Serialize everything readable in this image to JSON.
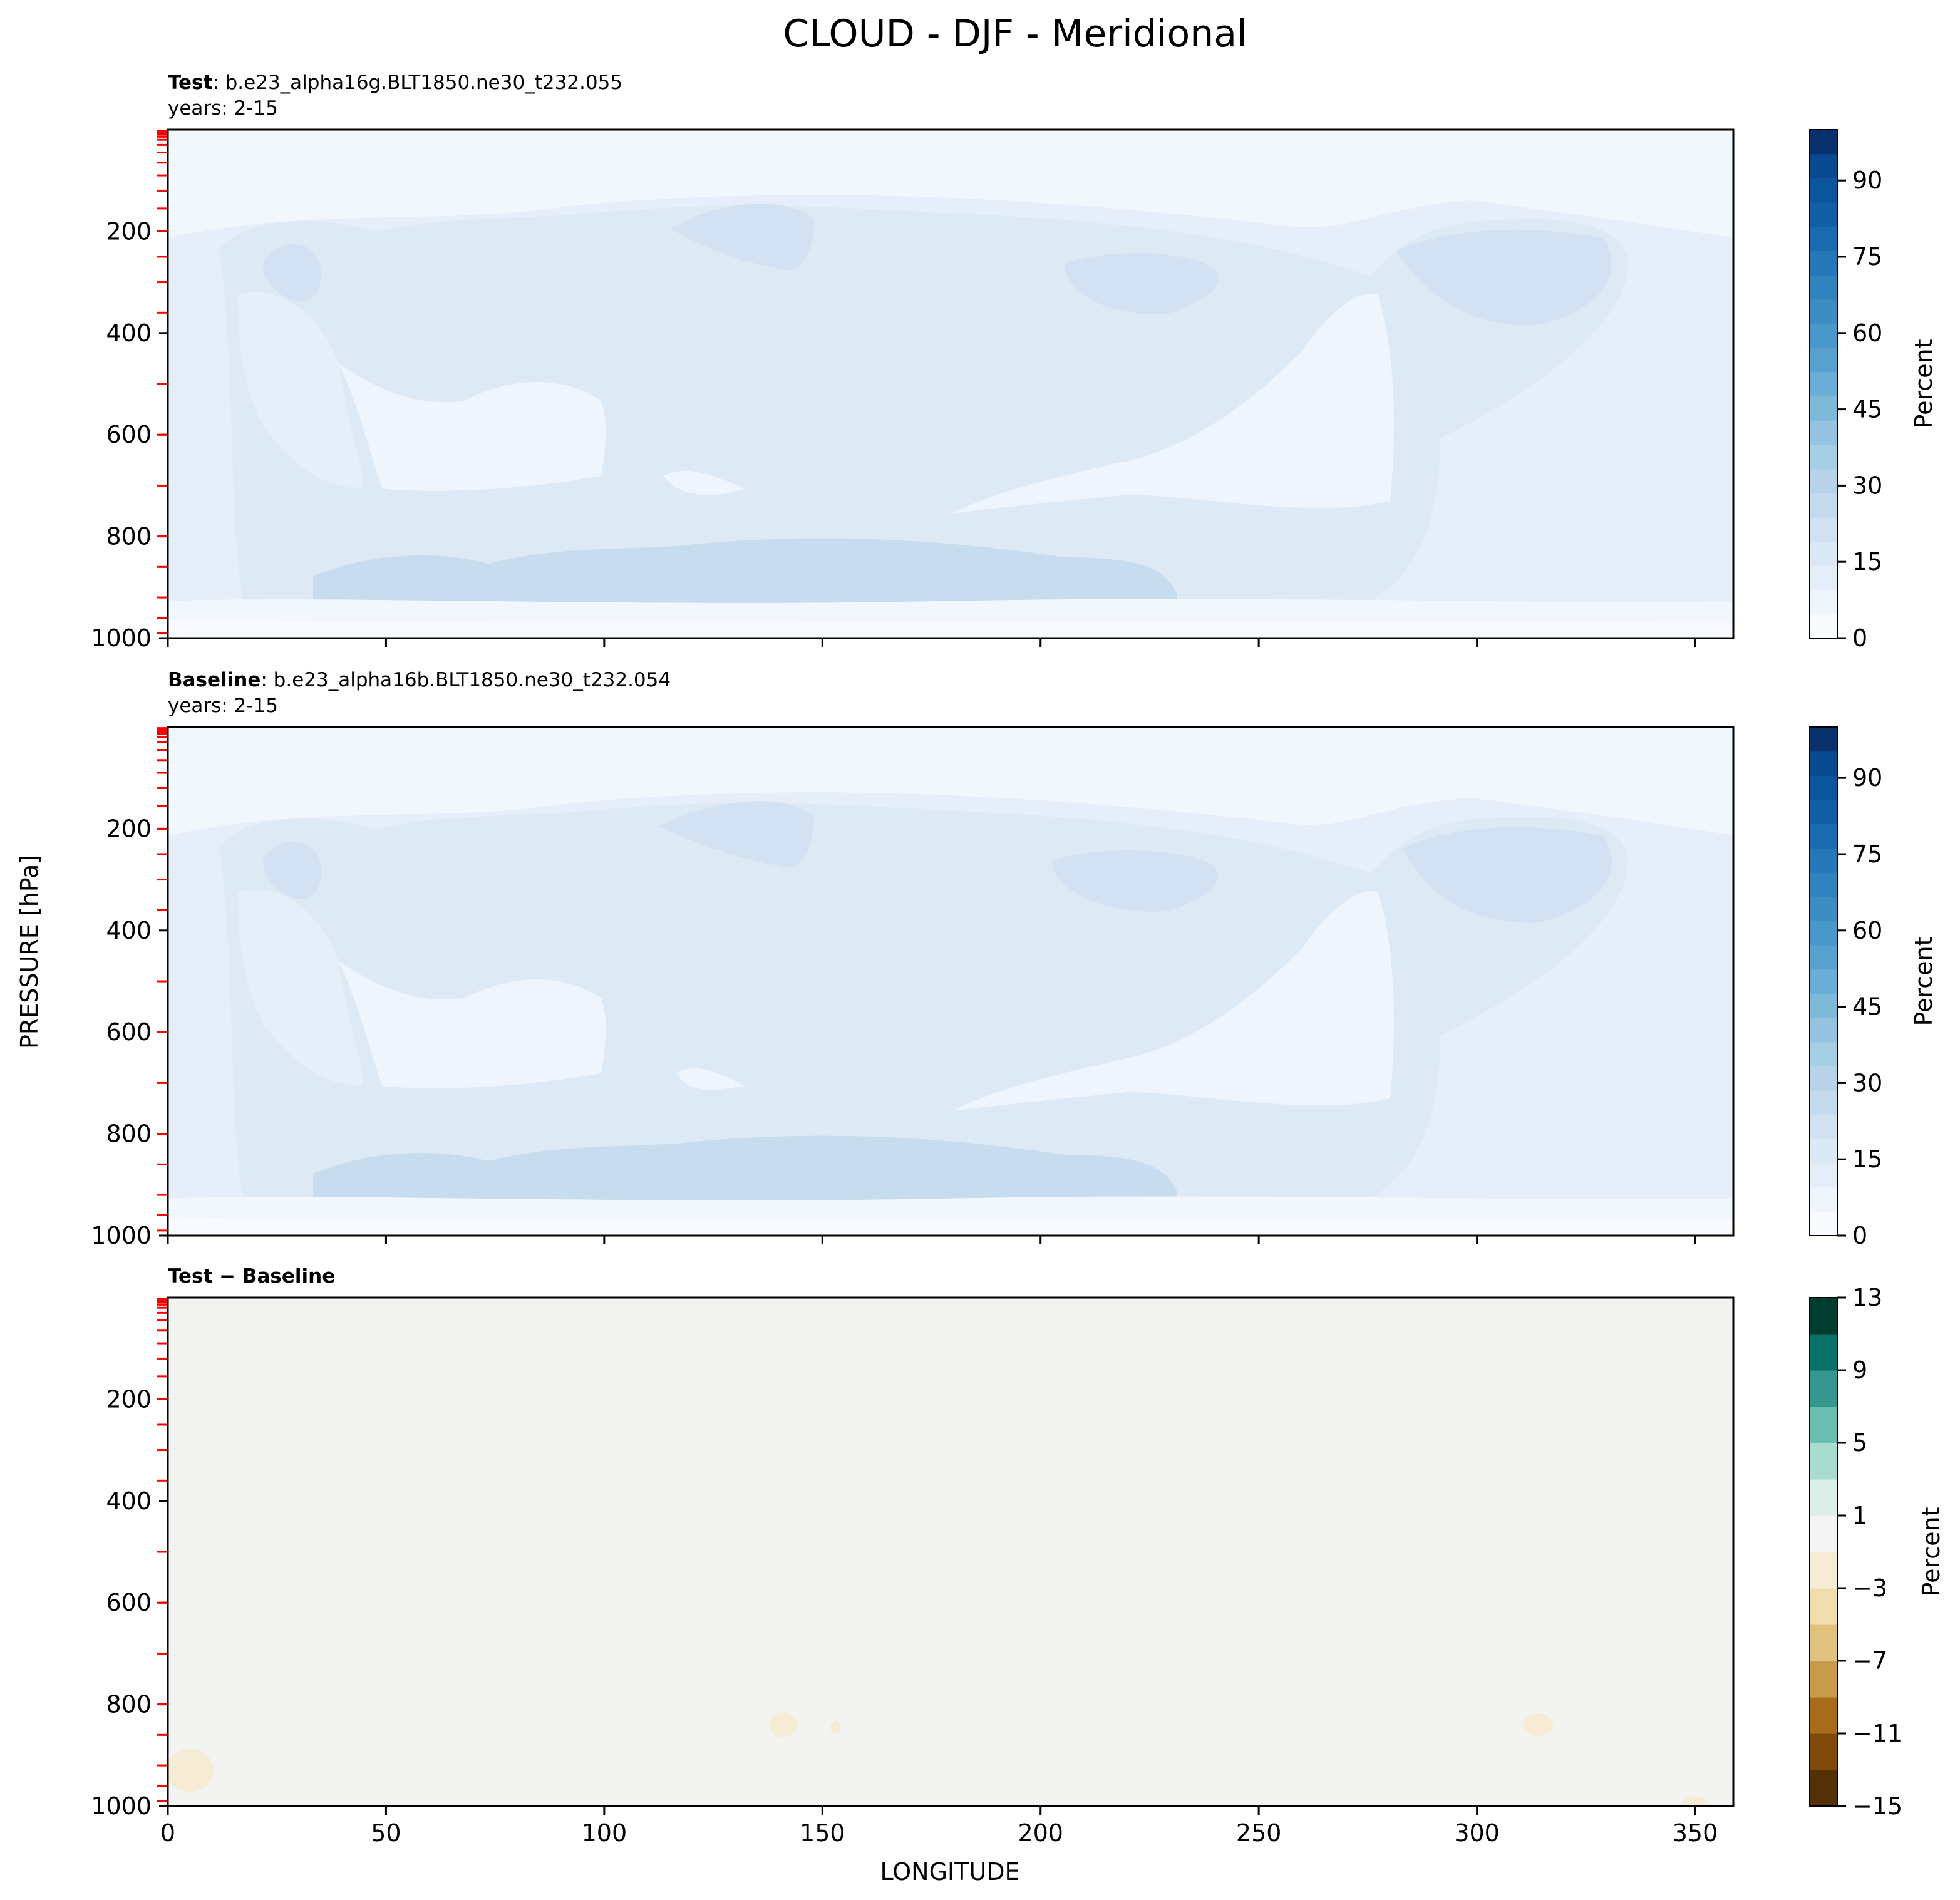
{
  "figure": {
    "suptitle": "CLOUD - DJF - Meridional",
    "ylabel": "PRESSURE [hPa]",
    "xlabel": "LONGITUDE"
  },
  "panels": [
    {
      "title_bold": "Test",
      "title_rest": ": b.e23_alpha16g.BLT1850.ne30_t232.055",
      "years": "years: 2-15"
    },
    {
      "title_bold": "Baseline",
      "title_rest": ": b.e23_alpha16b.BLT1850.ne30_t232.054",
      "years": "years: 2-15"
    },
    {
      "title_bold": "Test − Baseline",
      "title_rest": "",
      "years": ""
    }
  ],
  "colorbars": [
    {
      "label": "Percent",
      "ticks": [
        "0",
        "15",
        "30",
        "45",
        "60",
        "75",
        "90"
      ],
      "cmap": "Blues"
    },
    {
      "label": "Percent",
      "ticks": [
        "0",
        "15",
        "30",
        "45",
        "60",
        "75",
        "90"
      ],
      "cmap": "Blues"
    },
    {
      "label": "Percent",
      "ticks": [
        "−15",
        "−11",
        "−7",
        "−3",
        "1",
        "5",
        "9",
        "13"
      ],
      "cmap": "BrBG"
    }
  ],
  "colors": {
    "blues": [
      "#f7fbff",
      "#eef5fc",
      "#e3eef9",
      "#dbe9f6",
      "#d0e1f2",
      "#c4daee",
      "#b5d4e9",
      "#a6cee4",
      "#94c4df",
      "#7fb9da",
      "#6aaed6",
      "#58a1cf",
      "#4a98c9",
      "#3d8dc4",
      "#3282be",
      "#2676b8",
      "#1c6ab0",
      "#135fa7",
      "#0b559f",
      "#084990",
      "#08306b"
    ],
    "brbg": [
      "#543005",
      "#7f4b0a",
      "#a66c1c",
      "#c89a4b",
      "#dfc27d",
      "#f0dcac",
      "#f6ebd4",
      "#f5f5f5",
      "#dceee9",
      "#a9dccf",
      "#6ac0b0",
      "#35978f",
      "#087168",
      "#003c30"
    ],
    "contour_red": "#ff0000"
  },
  "chart_data": {
    "type": "heatmap",
    "title": "CLOUD - DJF - Meridional",
    "xlabel": "LONGITUDE",
    "ylabel": "PRESSURE [hPa]",
    "x_ticks": [
      0,
      50,
      100,
      150,
      200,
      250,
      300,
      350
    ],
    "y_ticks": [
      200,
      400,
      600,
      800,
      1000
    ],
    "xlim": [
      0,
      358.75
    ],
    "ylim": [
      1000,
      0
    ],
    "panels": [
      {
        "name": "Test",
        "units": "Percent",
        "levels": [
          0,
          5,
          10,
          15,
          20,
          25,
          30,
          35,
          40,
          45,
          50,
          55,
          60,
          65,
          70,
          75,
          80,
          85,
          90,
          95,
          100
        ],
        "colorbar_range": [
          0,
          100
        ],
        "values_percent": {
          "upper_troposphere_0_150hPa": "0-5",
          "high_cloud_200_300hPa": "10-15",
          "mid_troposphere_400_700hPa": "5-10",
          "boundary_layer_800_950hPa": "10-20",
          "near_surface_1000hPa": "0-5"
        }
      },
      {
        "name": "Baseline",
        "units": "Percent",
        "levels": [
          0,
          5,
          10,
          15,
          20,
          25,
          30,
          35,
          40,
          45,
          50,
          55,
          60,
          65,
          70,
          75,
          80,
          85,
          90,
          95,
          100
        ],
        "colorbar_range": [
          0,
          100
        ],
        "values_percent": {
          "upper_troposphere_0_150hPa": "0-5",
          "high_cloud_200_300hPa": "10-15",
          "mid_troposphere_400_700hPa": "5-10",
          "boundary_layer_800_950hPa": "10-20",
          "near_surface_1000hPa": "0-5"
        }
      },
      {
        "name": "Test - Baseline",
        "units": "Percent",
        "levels": [
          -15,
          -13,
          -11,
          -9,
          -7,
          -5,
          -3,
          -1,
          1,
          3,
          5,
          7,
          9,
          11,
          13
        ],
        "colorbar_range": [
          -15,
          13
        ],
        "values_percent": {
          "background": "-1 to 1",
          "negative_patches_lon_pressure": [
            {
              "lon": 5,
              "p": 930,
              "value": "-3 to -1"
            },
            {
              "lon": 141,
              "p": 840,
              "value": "-3 to -1"
            },
            {
              "lon": 153,
              "p": 845,
              "value": "-3 to -1"
            },
            {
              "lon": 314,
              "p": 840,
              "value": "-3 to -1"
            },
            {
              "lon": 350,
              "p": 995,
              "value": "-3 to -1"
            }
          ]
        }
      }
    ]
  }
}
